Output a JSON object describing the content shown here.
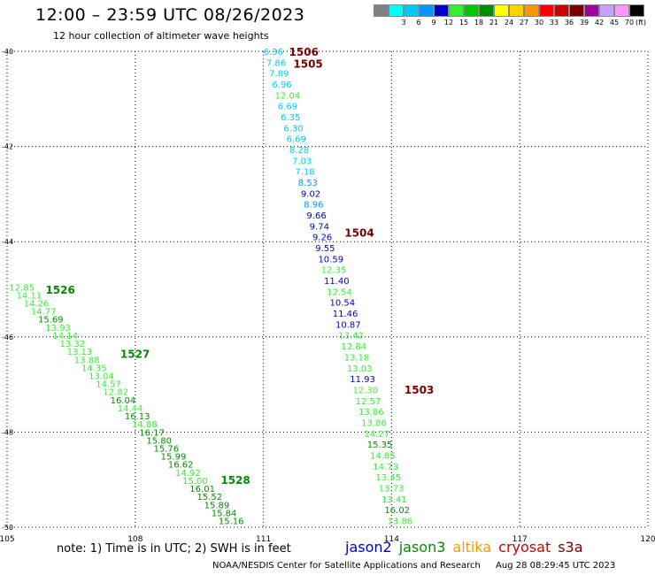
{
  "header": {
    "title": "12:00 – 23:59 UTC 08/26/2023",
    "subtitle": "12 hour collection of altimeter wave heights"
  },
  "legend": {
    "unit": "(ft)",
    "bins": [
      {
        "label": "",
        "color": "#808080"
      },
      {
        "label": "3",
        "color": "#00ffff"
      },
      {
        "label": "6",
        "color": "#00c8ff"
      },
      {
        "label": "9",
        "color": "#0096ff"
      },
      {
        "label": "12",
        "color": "#0000c8"
      },
      {
        "label": "15",
        "color": "#32f032"
      },
      {
        "label": "18",
        "color": "#00c800"
      },
      {
        "label": "21",
        "color": "#008c00"
      },
      {
        "label": "24",
        "color": "#ffff00"
      },
      {
        "label": "27",
        "color": "#ffd200"
      },
      {
        "label": "30",
        "color": "#ff9600"
      },
      {
        "label": "33",
        "color": "#ff0000"
      },
      {
        "label": "36",
        "color": "#c80000"
      },
      {
        "label": "39",
        "color": "#780000"
      },
      {
        "label": "42",
        "color": "#a000a0"
      },
      {
        "label": "45",
        "color": "#c8a0ff"
      },
      {
        "label": "70",
        "color": "#ff96ff"
      },
      {
        "label": "",
        "color": "#000000"
      }
    ]
  },
  "map": {
    "lon_ticks": [
      "105",
      "108",
      "111",
      "114",
      "117",
      "120"
    ],
    "lat_ticks": [
      "-40",
      "-42",
      "-44",
      "-46",
      "-48",
      "-50"
    ],
    "lon_range": [
      105,
      120
    ],
    "lat_range": [
      -40,
      -50
    ],
    "track_labels": [
      {
        "text": "1506",
        "lon": 111.6,
        "lat": -40.0,
        "color": "#780000"
      },
      {
        "text": "1505",
        "lon": 111.7,
        "lat": -40.25,
        "color": "#780000"
      },
      {
        "text": "1504",
        "lon": 112.9,
        "lat": -43.8,
        "color": "#780000"
      },
      {
        "text": "1503",
        "lon": 114.3,
        "lat": -47.1,
        "color": "#780000"
      },
      {
        "text": "1526",
        "lon": 105.9,
        "lat": -45.0,
        "color": "#008c00"
      },
      {
        "text": "1527",
        "lon": 107.65,
        "lat": -46.35,
        "color": "#008c00"
      },
      {
        "text": "1528",
        "lon": 110.0,
        "lat": -49.0,
        "color": "#008c00"
      }
    ],
    "tracks": [
      {
        "name": "1505",
        "color": "#00c8ff",
        "lon_start": 111.0,
        "lon_end": 113.9,
        "lat_start": -40.0,
        "lat_end": -49.86,
        "values": [
          "6.36",
          "7.86",
          "7.89",
          "6.96",
          "12.04",
          "6.69",
          "6.35",
          "6.30",
          "6.69",
          "8.28",
          "7.03",
          "7.18",
          "8.53",
          "9.02",
          "8.96",
          "9.66",
          "9.74",
          "9.26",
          "9.55",
          "10.59",
          "12.35",
          "11.40",
          "12.54",
          "10.54",
          "11.46",
          "10.87",
          "13.42",
          "12.84",
          "13.18",
          "13.03",
          "11.93",
          "12.30",
          "12.57",
          "13.86",
          "13.86",
          "14.27",
          "15.35",
          "14.85",
          "14.73",
          "13.45",
          "13.73",
          "13.41",
          "16.02",
          "13.86"
        ],
        "colors": [
          "#00c8ff",
          "#00c8ff",
          "#00c8ff",
          "#00c8ff",
          "#32f032",
          "#00c8ff",
          "#00c8ff",
          "#00c8ff",
          "#00c8ff",
          "#00c8ff",
          "#00c8ff",
          "#00c8ff",
          "#0096ff",
          "#0000c8",
          "#0096ff",
          "#0000c8",
          "#0000c8",
          "#0000c8",
          "#0000c8",
          "#0000c8",
          "#32f032",
          "#0000c8",
          "#32f032",
          "#0000c8",
          "#0000c8",
          "#0000c8",
          "#32f032",
          "#32f032",
          "#32f032",
          "#32f032",
          "#0000c8",
          "#32f032",
          "#32f032",
          "#32f032",
          "#32f032",
          "#32f032",
          "#008c00",
          "#32f032",
          "#32f032",
          "#32f032",
          "#32f032",
          "#32f032",
          "#008c00",
          "#32f032"
        ]
      },
      {
        "name": "1526",
        "color": "#32f032",
        "lon_start": 105.05,
        "lon_end": 109.95,
        "lat_start": -44.95,
        "lat_end": -49.86,
        "values": [
          "12.85",
          "14.11",
          "14.26",
          "14.77",
          "15.69",
          "13.93",
          "14.14",
          "13.32",
          "13.13",
          "13.88",
          "14.35",
          "13.04",
          "14.57",
          "12.82",
          "16.04",
          "14.44",
          "16.13",
          "14.88",
          "16.17",
          "15.80",
          "15.76",
          "15.99",
          "16.62",
          "14.92",
          "15.00",
          "16.01",
          "15.52",
          "15.89",
          "15.84",
          "15.16"
        ],
        "colors": [
          "#32f032",
          "#32f032",
          "#32f032",
          "#32f032",
          "#008c00",
          "#32f032",
          "#32f032",
          "#32f032",
          "#32f032",
          "#32f032",
          "#32f032",
          "#32f032",
          "#32f032",
          "#32f032",
          "#008c00",
          "#32f032",
          "#008c00",
          "#32f032",
          "#008c00",
          "#008c00",
          "#008c00",
          "#008c00",
          "#008c00",
          "#32f032",
          "#32f032",
          "#008c00",
          "#008c00",
          "#008c00",
          "#008c00",
          "#008c00"
        ]
      }
    ]
  },
  "note": "note:  1) Time is in UTC;  2) SWH is in feet",
  "satellites": [
    {
      "name": "jason2",
      "color": "#0000c8"
    },
    {
      "name": "jason3",
      "color": "#008c00"
    },
    {
      "name": "altika",
      "color": "#ff9600"
    },
    {
      "name": "cryosat",
      "color": "#c80000"
    },
    {
      "name": "s3a",
      "color": "#780000"
    }
  ],
  "footer": {
    "credit": "NOAA/NESDIS Center for Satellite Applications and Research",
    "timestamp": "Aug 28 08:29:45 UTC 2023"
  }
}
